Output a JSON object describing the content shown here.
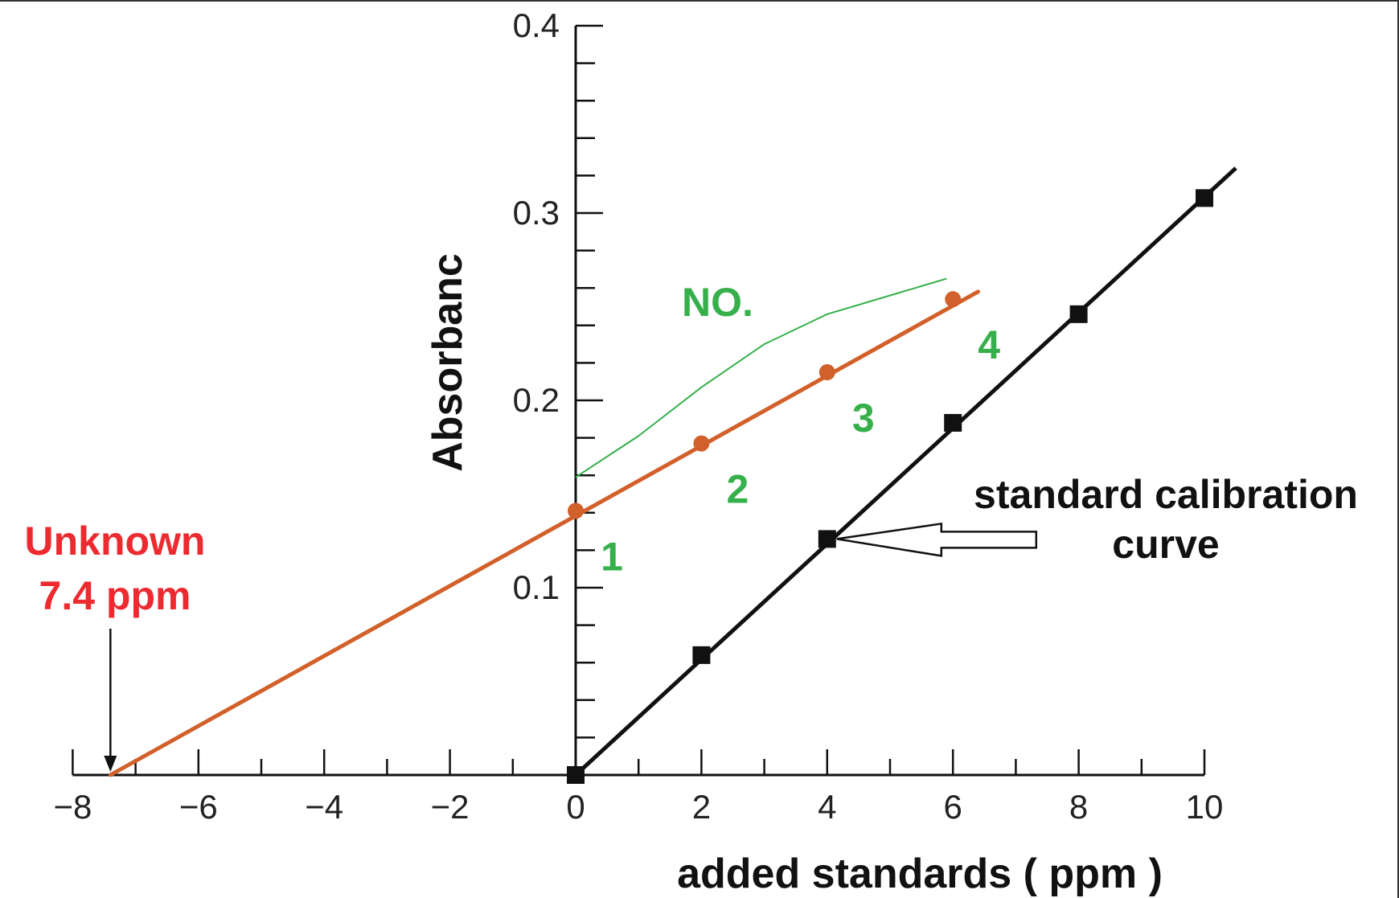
{
  "colors": {
    "standard_series": "#111111",
    "addition_series": "#d2602a",
    "unknown_annotation": "#ec2a30",
    "green_annotation": "#35b04a",
    "axis": "#111111"
  },
  "chart_data": {
    "type": "line",
    "title": "",
    "xlabel": "added standards ( ppm )",
    "ylabel": "Absorbanc",
    "xlim": [
      -8,
      10
    ],
    "ylim": [
      0,
      0.4
    ],
    "x_tick_labels": [
      "−8",
      "−6",
      "−4",
      "−2",
      "0",
      "2",
      "4",
      "6",
      "8",
      "10"
    ],
    "y_tick_labels": [
      "0.1",
      "0.2",
      "0.3",
      "0.4"
    ],
    "x_ticks": [
      -8,
      -6,
      -4,
      -2,
      0,
      2,
      4,
      6,
      8,
      10
    ],
    "y_ticks": [
      0.1,
      0.2,
      0.3,
      0.4
    ],
    "grid": false,
    "series": [
      {
        "name": "standard calibration curve",
        "marker": "square",
        "color": "#111111",
        "points": [
          [
            0,
            0.0
          ],
          [
            2,
            0.064
          ],
          [
            4,
            0.126
          ],
          [
            6,
            0.188
          ],
          [
            8,
            0.246
          ],
          [
            10,
            0.308
          ]
        ],
        "line": [
          [
            0,
            0.0
          ],
          [
            10.5,
            0.324
          ]
        ]
      },
      {
        "marker": "circle",
        "color": "#d2602a",
        "points": [
          [
            0,
            0.141
          ],
          [
            2,
            0.177
          ],
          [
            4,
            0.215
          ],
          [
            6,
            0.254
          ]
        ],
        "point_labels": [
          "1",
          "2",
          "3",
          "4"
        ],
        "line": [
          [
            -7.4,
            0.0
          ],
          [
            6.4,
            0.258
          ]
        ]
      }
    ],
    "curve_NO": {
      "label": "NO.",
      "color": "#35b04a",
      "points": [
        [
          0,
          0.159
        ],
        [
          1,
          0.181
        ],
        [
          2,
          0.207
        ],
        [
          3,
          0.23
        ],
        [
          4,
          0.246
        ],
        [
          5,
          0.256
        ],
        [
          5.9,
          0.265
        ]
      ]
    },
    "annotations": {
      "unknown_line1": "Unknown",
      "unknown_line2": "7.4 ppm",
      "unknown_x": -7.4,
      "calibration_label_line1": "standard calibration",
      "calibration_label_line2": "curve",
      "calibration_arrow_target": [
        4,
        0.126
      ]
    }
  }
}
